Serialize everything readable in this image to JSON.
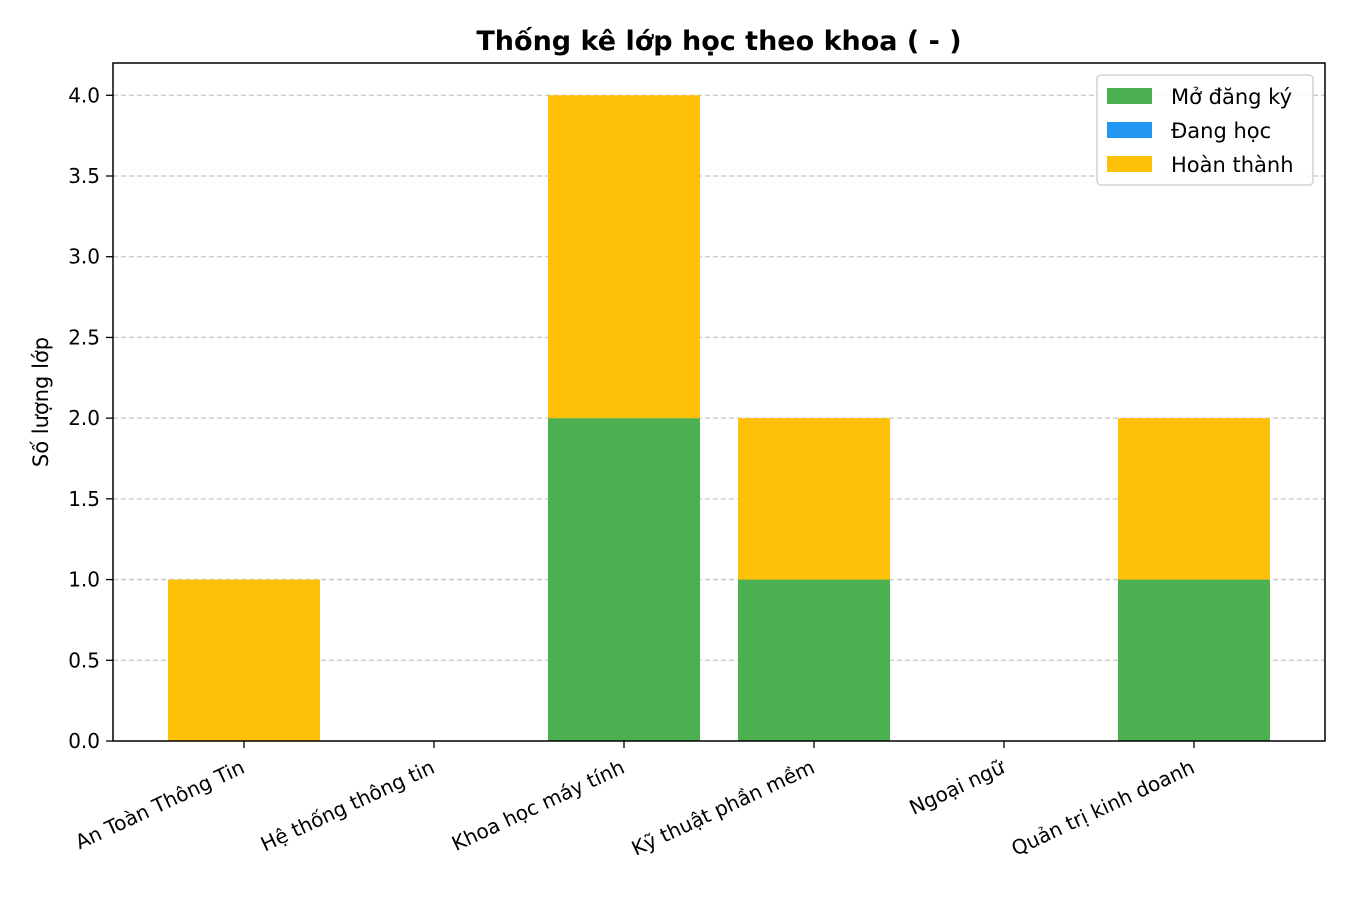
{
  "chart_data": {
    "type": "bar",
    "stacked": true,
    "title": "Thống kê lớp học theo khoa ( - )",
    "xlabel": "",
    "ylabel": "Số lượng lớp",
    "categories": [
      "An Toàn Thông Tin",
      "Hệ thống thông tin",
      "Khoa học máy tính",
      "Kỹ thuật phần mềm",
      "Ngoại ngữ",
      "Quản trị kinh doanh"
    ],
    "series": [
      {
        "name": "Mở đăng ký",
        "color": "#4caf50",
        "values": [
          0,
          0,
          2,
          1,
          0,
          1
        ]
      },
      {
        "name": "Đang học",
        "color": "#2196f3",
        "values": [
          0,
          0,
          0,
          0,
          0,
          0
        ]
      },
      {
        "name": "Hoàn thành",
        "color": "#ffc107",
        "values": [
          1,
          0,
          2,
          1,
          0,
          1
        ]
      }
    ],
    "ylim": [
      0,
      4.2
    ],
    "yticks": [
      "0.0",
      "0.5",
      "1.0",
      "1.5",
      "2.0",
      "2.5",
      "3.0",
      "3.5",
      "4.0"
    ],
    "grid": "y-dashed",
    "legend_position": "top-right"
  }
}
